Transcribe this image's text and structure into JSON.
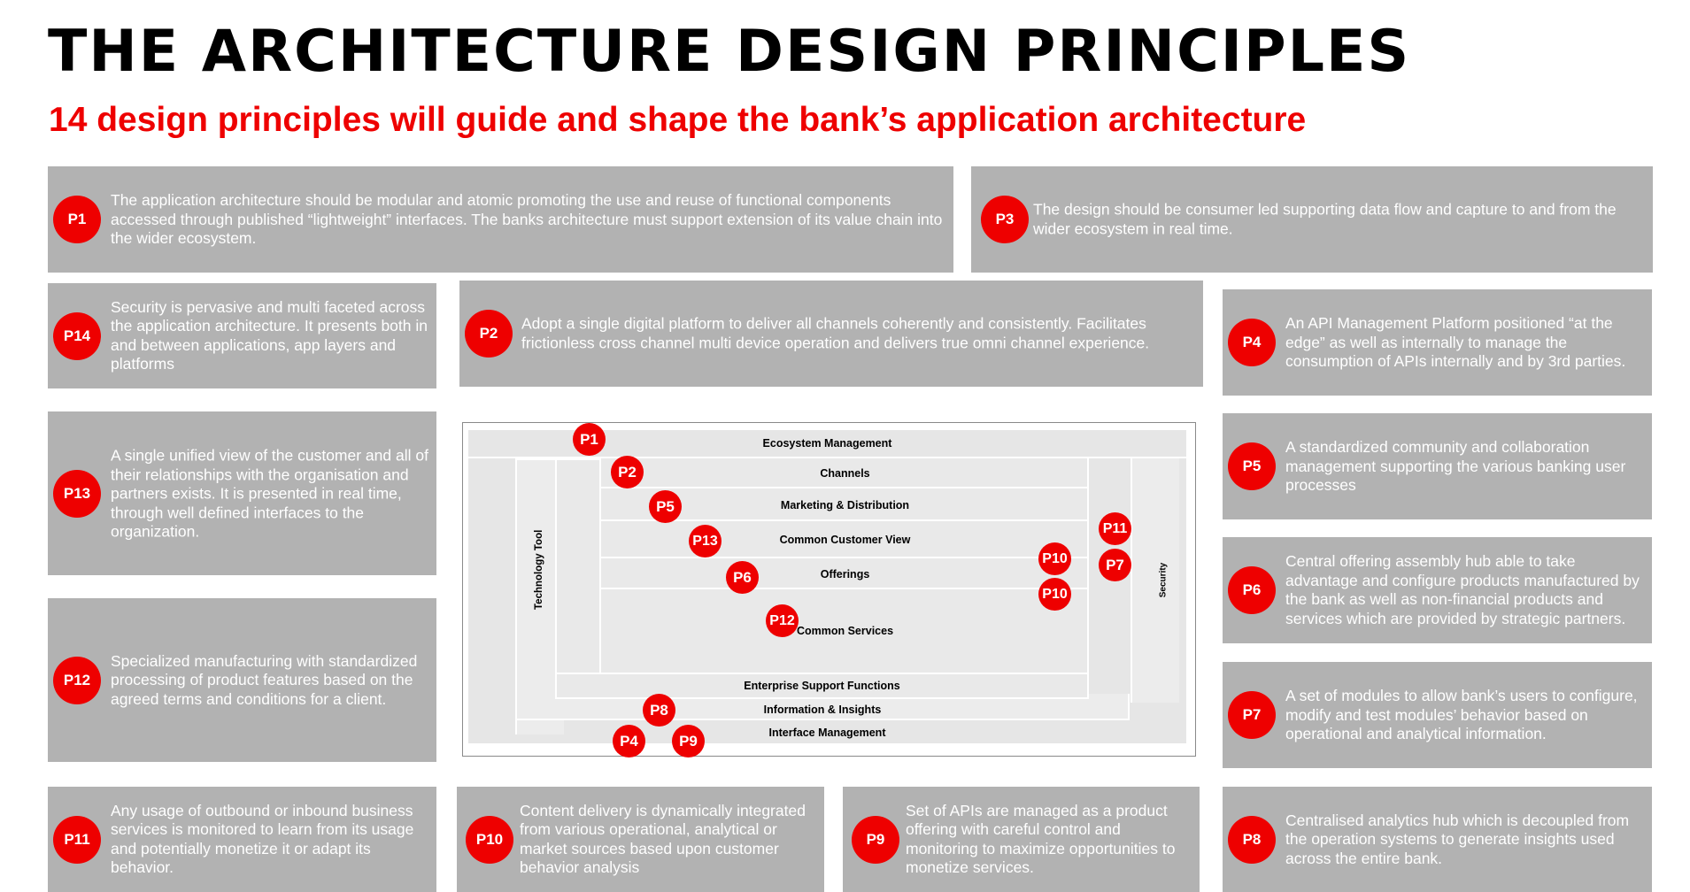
{
  "title": "THE ARCHITECTURE DESIGN PRINCIPLES",
  "subtitle": "14 design principles will guide and shape the bank’s application architecture",
  "principles": {
    "p1": {
      "id": "P1",
      "text": "The application architecture should be modular and atomic promoting the use and reuse of functional components accessed through published “lightweight” interfaces. The banks architecture must support extension of its value chain into the wider ecosystem."
    },
    "p3": {
      "id": "P3",
      "text": "The design should be consumer led supporting data flow and capture to and from the wider ecosystem in real time."
    },
    "p14": {
      "id": "P14",
      "text": "Security is pervasive and multi faceted across the application architecture. It presents both in and between applications, app  layers  and platforms"
    },
    "p2": {
      "id": "P2",
      "text": "Adopt a single digital platform to deliver all channels coherently and consistently.  Facilitates frictionless cross channel multi device operation and delivers true omni channel experience."
    },
    "p4": {
      "id": "P4",
      "text": "An API Management Platform positioned “at the edge” as well as internally to manage the consumption of APIs internally and by 3rd parties."
    },
    "p13": {
      "id": "P13",
      "text": "A single unified view of the customer and all of their relationships with the organisation and partners exists.  It is presented in real time,  through well defined interfaces to the organization."
    },
    "p5": {
      "id": "P5",
      "text": "A standardized community and collaboration management supporting the various banking user processes"
    },
    "p6": {
      "id": "P6",
      "text": "Central offering assembly hub able to take advantage and configure products manufactured by the bank as well as non-financial products and services which are provided by strategic partners."
    },
    "p12": {
      "id": "P12",
      "text": "Specialized manufacturing with standardized processing of product features based on the agreed terms and conditions for a client."
    },
    "p7": {
      "id": "P7",
      "text": "A set of modules to allow bank’s users to configure, modify and test modules’ behavior based on operational and analytical information."
    },
    "p11": {
      "id": "P11",
      "text": "Any usage of outbound or inbound business services is monitored to learn from its usage and potentially monetize it or adapt its behavior."
    },
    "p10": {
      "id": "P10",
      "text": "Content delivery is dynamically integrated from various operational, analytical or market sources based upon customer behavior analysis"
    },
    "p9": {
      "id": "P9",
      "text": "Set of APIs are managed as a product offering with careful control and monitoring to maximize opportunities to monetize services."
    },
    "p8": {
      "id": "P8",
      "text": "Centralised analytics hub which is decoupled from the operation systems to generate insights used across the entire bank."
    }
  },
  "diagram": {
    "layers": {
      "ecosystem": "Ecosystem Management",
      "channels": "Channels",
      "marketing": "Marketing & Distribution",
      "customer_view": "Common Customer View",
      "offerings": "Offerings",
      "common_services": "Common Services",
      "enterprise": "Enterprise Support Functions",
      "insights": "Information & Insights",
      "interface": "Interface Management",
      "technology_tool": "Technology Tool",
      "security": "Security"
    },
    "pins": [
      "P1",
      "P2",
      "P5",
      "P13",
      "P6",
      "P12",
      "P8",
      "P4",
      "P9",
      "P11",
      "P7",
      "P10",
      "P10"
    ]
  },
  "colors": {
    "accent": "#ee0000",
    "card": "#b2b2b2",
    "layer": "#e6e6e6"
  }
}
